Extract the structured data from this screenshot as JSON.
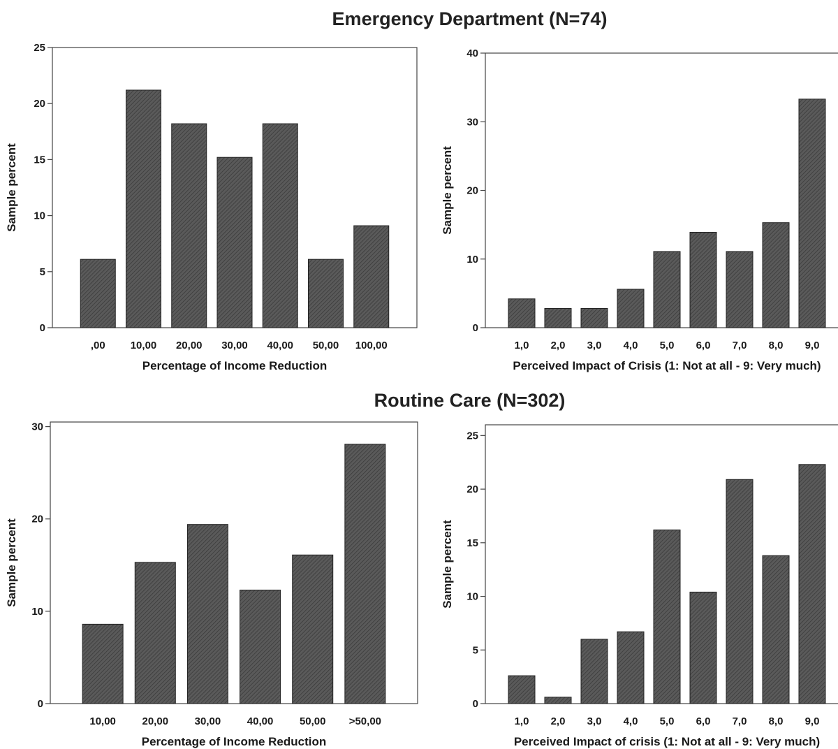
{
  "titles": {
    "emergency": "Emergency Department (N=74)",
    "routine": "Routine Care (N=302)"
  },
  "colors": {
    "bar_fill": "#5a5a5a",
    "bar_hatch": "#3a3a3a",
    "frame": "#444444"
  },
  "chart_data": [
    {
      "type": "bar",
      "panel": "Emergency Department",
      "categories": [
        ",00",
        "10,00",
        "20,00",
        "30,00",
        "40,00",
        "50,00",
        "100,00"
      ],
      "values": [
        6.1,
        21.2,
        18.2,
        15.2,
        18.2,
        6.1,
        9.1
      ],
      "xlabel": "Percentage of Income Reduction",
      "ylabel": "Sample percent",
      "ylim": [
        0,
        25
      ],
      "yticks": [
        0,
        5,
        10,
        15,
        20,
        25
      ]
    },
    {
      "type": "bar",
      "panel": "Emergency Department",
      "categories": [
        "1,0",
        "2,0",
        "3,0",
        "4,0",
        "5,0",
        "6,0",
        "7,0",
        "8,0",
        "9,0"
      ],
      "values": [
        4.2,
        2.8,
        2.8,
        5.6,
        11.1,
        13.9,
        11.1,
        15.3,
        33.3
      ],
      "xlabel": "Perceived Impact of Crisis (1: Not at all - 9: Very much)",
      "ylabel": "Sample percent",
      "ylim": [
        0,
        40
      ],
      "yticks": [
        0,
        10,
        20,
        30,
        40
      ]
    },
    {
      "type": "bar",
      "panel": "Routine Care",
      "categories": [
        "10,00",
        "20,00",
        "30,00",
        "40,00",
        "50,00",
        ">50,00"
      ],
      "values": [
        8.6,
        15.3,
        19.4,
        12.3,
        16.1,
        28.1
      ],
      "xlabel": "Percentage of Income Reduction",
      "ylabel": "Sample percent",
      "ylim": [
        0,
        30.5
      ],
      "yticks": [
        0,
        10,
        20,
        30
      ]
    },
    {
      "type": "bar",
      "panel": "Routine Care",
      "categories": [
        "1,0",
        "2,0",
        "3,0",
        "4,0",
        "5,0",
        "6,0",
        "7,0",
        "8,0",
        "9,0"
      ],
      "values": [
        2.6,
        0.6,
        6.0,
        6.7,
        16.2,
        10.4,
        20.9,
        13.8,
        22.3
      ],
      "xlabel": "Perceived Impact of crisis (1: Not at all - 9: Very much)",
      "ylabel": "Sample percent",
      "ylim": [
        0,
        26
      ],
      "yticks": [
        0,
        5,
        10,
        15,
        20,
        25
      ]
    }
  ]
}
